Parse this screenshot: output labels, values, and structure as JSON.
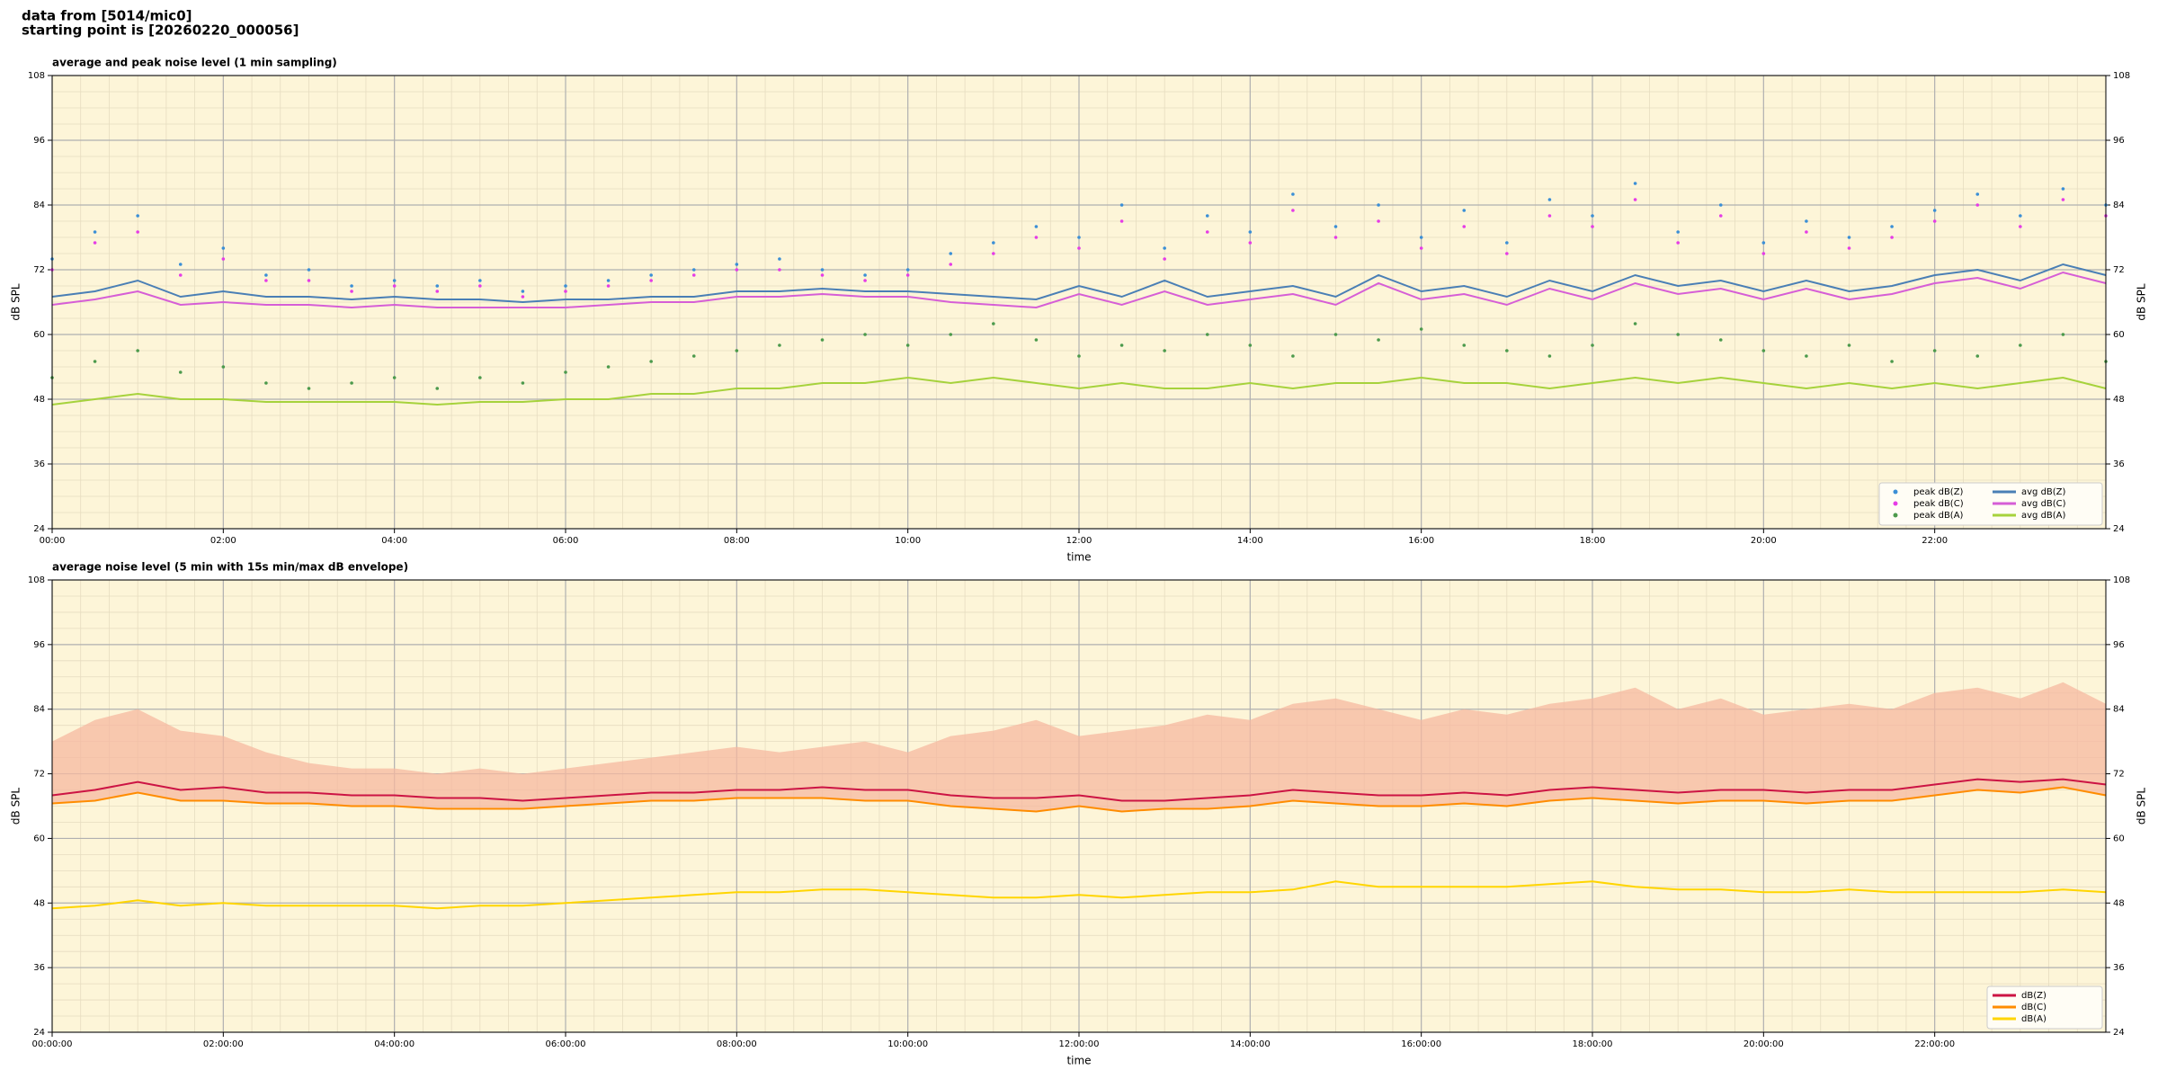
{
  "header": {
    "source": "data from [5014/mic0]",
    "start": "starting point is [20260220_000056]"
  },
  "chart_data": [
    {
      "type": "line",
      "title": "average and peak noise level (1 min sampling)",
      "xlabel": "time",
      "ylabel": "dB SPL",
      "background": "#fdf5d8",
      "grid": true,
      "legend": "lower right",
      "legend_columns": 2,
      "xlim": [
        0,
        24
      ],
      "ylim": [
        24,
        108
      ],
      "xticks": [
        {
          "value": 0,
          "label": "00:00"
        },
        {
          "value": 2,
          "label": "02:00"
        },
        {
          "value": 4,
          "label": "04:00"
        },
        {
          "value": 6,
          "label": "06:00"
        },
        {
          "value": 8,
          "label": "08:00"
        },
        {
          "value": 10,
          "label": "10:00"
        },
        {
          "value": 12,
          "label": "12:00"
        },
        {
          "value": 14,
          "label": "14:00"
        },
        {
          "value": 16,
          "label": "16:00"
        },
        {
          "value": 18,
          "label": "18:00"
        },
        {
          "value": 20,
          "label": "20:00"
        },
        {
          "value": 22,
          "label": "22:00"
        }
      ],
      "yticks": [
        24,
        36,
        48,
        60,
        72,
        84,
        96,
        108
      ],
      "x": [
        0,
        0.5,
        1,
        1.5,
        2,
        2.5,
        3,
        3.5,
        4,
        4.5,
        5,
        5.5,
        6,
        6.5,
        7,
        7.5,
        8,
        8.5,
        9,
        9.5,
        10,
        10.5,
        11,
        11.5,
        12,
        12.5,
        13,
        13.5,
        14,
        14.5,
        15,
        15.5,
        16,
        16.5,
        17,
        17.5,
        18,
        18.5,
        19,
        19.5,
        20,
        20.5,
        21,
        21.5,
        22,
        22.5,
        23,
        23.5,
        24
      ],
      "series": [
        {
          "name": "peak dB(Z)",
          "style": "scatter",
          "color": "#3b8fd6",
          "values": [
            74,
            79,
            82,
            73,
            76,
            71,
            72,
            69,
            70,
            69,
            70,
            68,
            69,
            70,
            71,
            72,
            73,
            74,
            72,
            71,
            72,
            75,
            77,
            80,
            78,
            84,
            76,
            82,
            79,
            86,
            80,
            84,
            78,
            83,
            77,
            85,
            82,
            88,
            79,
            84,
            77,
            81,
            78,
            80,
            83,
            86,
            82,
            87,
            84
          ]
        },
        {
          "name": "peak dB(C)",
          "style": "scatter",
          "color": "#e63ce6",
          "values": [
            72,
            77,
            79,
            71,
            74,
            70,
            70,
            68,
            69,
            68,
            69,
            67,
            68,
            69,
            70,
            71,
            72,
            72,
            71,
            70,
            71,
            73,
            75,
            78,
            76,
            81,
            74,
            79,
            77,
            83,
            78,
            81,
            76,
            80,
            75,
            82,
            80,
            85,
            77,
            82,
            75,
            79,
            76,
            78,
            81,
            84,
            80,
            85,
            82
          ]
        },
        {
          "name": "peak dB(A)",
          "style": "scatter",
          "color": "#4c9a4c",
          "values": [
            52,
            55,
            57,
            53,
            54,
            51,
            50,
            51,
            52,
            50,
            52,
            51,
            53,
            54,
            55,
            56,
            57,
            58,
            59,
            60,
            58,
            60,
            62,
            59,
            56,
            58,
            57,
            60,
            58,
            56,
            60,
            59,
            61,
            58,
            57,
            56,
            58,
            62,
            60,
            59,
            57,
            56,
            58,
            55,
            57,
            56,
            58,
            60,
            55
          ]
        },
        {
          "name": "avg dB(Z)",
          "style": "line",
          "color": "#4a7fb5",
          "values": [
            67,
            68,
            70,
            67,
            68,
            67,
            67,
            66.5,
            67,
            66.5,
            66.5,
            66,
            66.5,
            66.5,
            67,
            67,
            68,
            68,
            68.5,
            68,
            68,
            67.5,
            67,
            66.5,
            69,
            67,
            70,
            67,
            68,
            69,
            67,
            71,
            68,
            69,
            67,
            70,
            68,
            71,
            69,
            70,
            68,
            70,
            68,
            69,
            71,
            72,
            70,
            73,
            71
          ]
        },
        {
          "name": "avg dB(C)",
          "style": "line",
          "color": "#d65ed6",
          "values": [
            65.5,
            66.5,
            68,
            65.5,
            66,
            65.5,
            65.5,
            65,
            65.5,
            65,
            65,
            65,
            65,
            65.5,
            66,
            66,
            67,
            67,
            67.5,
            67,
            67,
            66,
            65.5,
            65,
            67.5,
            65.5,
            68,
            65.5,
            66.5,
            67.5,
            65.5,
            69.5,
            66.5,
            67.5,
            65.5,
            68.5,
            66.5,
            69.5,
            67.5,
            68.5,
            66.5,
            68.5,
            66.5,
            67.5,
            69.5,
            70.5,
            68.5,
            71.5,
            69.5
          ]
        },
        {
          "name": "avg dB(A)",
          "style": "line",
          "color": "#a6d23c",
          "values": [
            47,
            48,
            49,
            48,
            48,
            47.5,
            47.5,
            47.5,
            47.5,
            47,
            47.5,
            47.5,
            48,
            48,
            49,
            49,
            50,
            50,
            51,
            51,
            52,
            51,
            52,
            51,
            50,
            51,
            50,
            50,
            51,
            50,
            51,
            51,
            52,
            51,
            51,
            50,
            51,
            52,
            51,
            52,
            51,
            50,
            51,
            50,
            51,
            50,
            51,
            52,
            50
          ]
        }
      ]
    },
    {
      "type": "line",
      "title": "average noise level (5 min with 15s min/max dB envelope)",
      "xlabel": "time",
      "ylabel": "dB SPL",
      "background": "#fdf5d8",
      "grid": true,
      "legend": "lower right",
      "legend_columns": 1,
      "xlim": [
        0,
        24
      ],
      "ylim": [
        24,
        108
      ],
      "xticks": [
        {
          "value": 0,
          "label": "00:00:00"
        },
        {
          "value": 2,
          "label": "02:00:00"
        },
        {
          "value": 4,
          "label": "04:00:00"
        },
        {
          "value": 6,
          "label": "06:00:00"
        },
        {
          "value": 8,
          "label": "08:00:00"
        },
        {
          "value": 10,
          "label": "10:00:00"
        },
        {
          "value": 12,
          "label": "12:00:00"
        },
        {
          "value": 14,
          "label": "14:00:00"
        },
        {
          "value": 16,
          "label": "16:00:00"
        },
        {
          "value": 18,
          "label": "18:00:00"
        },
        {
          "value": 20,
          "label": "20:00:00"
        },
        {
          "value": 22,
          "label": "22:00:00"
        }
      ],
      "yticks": [
        24,
        36,
        48,
        60,
        72,
        84,
        96,
        108
      ],
      "x": [
        0,
        0.5,
        1,
        1.5,
        2,
        2.5,
        3,
        3.5,
        4,
        4.5,
        5,
        5.5,
        6,
        6.5,
        7,
        7.5,
        8,
        8.5,
        9,
        9.5,
        10,
        10.5,
        11,
        11.5,
        12,
        12.5,
        13,
        13.5,
        14,
        14.5,
        15,
        15.5,
        16,
        16.5,
        17,
        17.5,
        18,
        18.5,
        19,
        19.5,
        20,
        20.5,
        21,
        21.5,
        22,
        22.5,
        23,
        23.5,
        24
      ],
      "series": [
        {
          "name": "dB(Z)",
          "color": "#cc1444",
          "envelope_color": "#f5b8a0",
          "values": [
            68,
            69,
            70.5,
            69,
            69.5,
            68.5,
            68.5,
            68,
            68,
            67.5,
            67.5,
            67,
            67.5,
            68,
            68.5,
            68.5,
            69,
            69,
            69.5,
            69,
            69,
            68,
            67.5,
            67.5,
            68,
            67,
            67,
            67.5,
            68,
            69,
            68.5,
            68,
            68,
            68.5,
            68,
            69,
            69.5,
            69,
            68.5,
            69,
            69,
            68.5,
            69,
            69,
            70,
            71,
            70.5,
            71,
            70
          ],
          "max": [
            78,
            82,
            84,
            80,
            79,
            76,
            74,
            73,
            73,
            72,
            73,
            72,
            73,
            74,
            75,
            76,
            77,
            76,
            77,
            78,
            76,
            79,
            80,
            82,
            79,
            80,
            81,
            83,
            82,
            85,
            86,
            84,
            82,
            84,
            83,
            85,
            86,
            88,
            84,
            86,
            83,
            84,
            85,
            84,
            87,
            88,
            86,
            89,
            85
          ]
        },
        {
          "name": "dB(C)",
          "color": "#ff8c00",
          "values": [
            66.5,
            67,
            68.5,
            67,
            67,
            66.5,
            66.5,
            66,
            66,
            65.5,
            65.5,
            65.5,
            66,
            66.5,
            67,
            67,
            67.5,
            67.5,
            67.5,
            67,
            67,
            66,
            65.5,
            65,
            66,
            65,
            65.5,
            65.5,
            66,
            67,
            66.5,
            66,
            66,
            66.5,
            66,
            67,
            67.5,
            67,
            66.5,
            67,
            67,
            66.5,
            67,
            67,
            68,
            69,
            68.5,
            69.5,
            68
          ]
        },
        {
          "name": "dB(A)",
          "color": "#ffd500",
          "values": [
            47,
            47.5,
            48.5,
            47.5,
            48,
            47.5,
            47.5,
            47.5,
            47.5,
            47,
            47.5,
            47.5,
            48,
            48.5,
            49,
            49.5,
            50,
            50,
            50.5,
            50.5,
            50,
            49.5,
            49,
            49,
            49.5,
            49,
            49.5,
            50,
            50,
            50.5,
            52,
            51,
            51,
            51,
            51,
            51.5,
            52,
            51,
            50.5,
            50.5,
            50,
            50,
            50.5,
            50,
            50,
            50,
            50,
            50.5,
            50
          ]
        }
      ]
    }
  ]
}
